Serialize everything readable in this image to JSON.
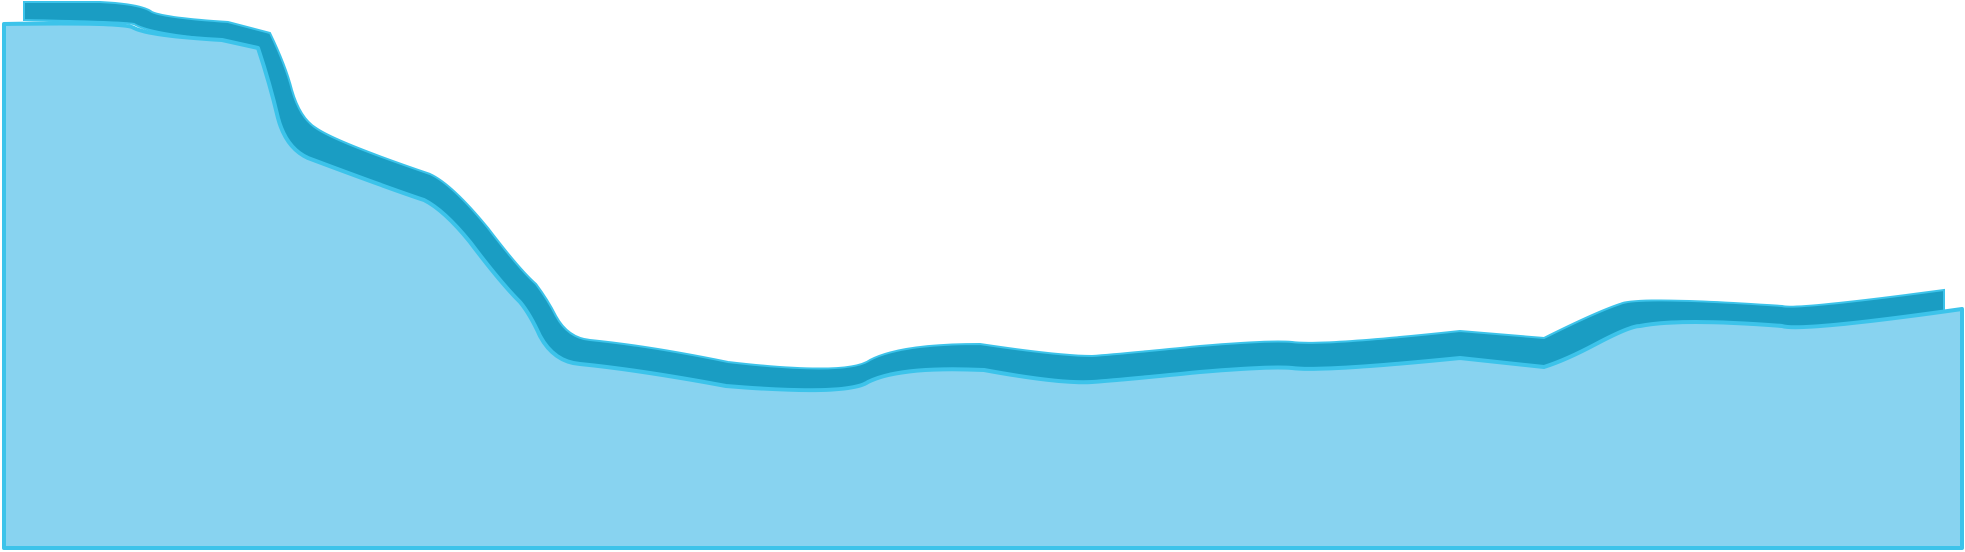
{
  "colors": {
    "background": "#ffffff",
    "water_fill": "#88d3f0",
    "water_outline": "#3cc3ea",
    "bank_band": "#1a9dc3",
    "bank_band_edge": "#3cc3ea"
  }
}
